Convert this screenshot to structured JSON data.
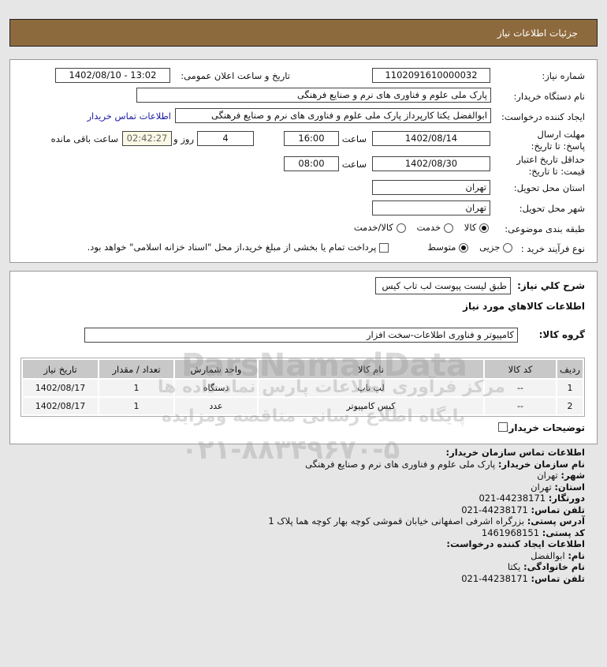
{
  "header": {
    "title": "جزئیات اطلاعات نیاز"
  },
  "form": {
    "need_number_label": "شماره نیاز:",
    "need_number": "1102091610000032",
    "announce_label": "تاریخ و ساعت اعلان عمومی:",
    "announce_value": "1402/08/10 - 13:02",
    "buyer_org_label": "نام دستگاه خریدار:",
    "buyer_org": "پارک ملی علوم و فناوری های نرم و صنایع فرهنگی",
    "creator_label": "ایجاد کننده درخواست:",
    "creator": "ابوالفضل  یکتا کارپرداز پارک ملی علوم و فناوری های نرم و صنایع فرهنگی",
    "contact_link": "اطلاعات تماس خریدار",
    "deadline_label": "مهلت ارسال پاسخ: تا تاریخ:",
    "deadline_date": "1402/08/14",
    "time_label": "ساعت",
    "deadline_time": "16:00",
    "days": "4",
    "days_label": "روز و",
    "remaining": "02:42:27",
    "remaining_label": "ساعت باقی مانده",
    "validity_label": "حداقل تاریخ اعتبار قیمت: تا تاریخ:",
    "validity_date": "1402/08/30",
    "validity_time": "08:00",
    "province_label": "استان محل تحویل:",
    "province": "تهران",
    "city_label": "شهر محل تحویل:",
    "city": "تهران",
    "category_label": "طبقه بندی موضوعی:",
    "category_options": [
      "کالا",
      "خدمت",
      "کالا/خدمت"
    ],
    "category_selected": "کالا",
    "process_label": "نوع فرآیند خرید :",
    "process_options": [
      "جزیی",
      "متوسط"
    ],
    "process_selected": "متوسط",
    "payment_note": "پرداخت تمام یا بخشی از مبلغ خرید،از محل \"اسناد خزانه اسلامی\" خواهد بود."
  },
  "details": {
    "desc_label": "شرح کلي نياز:",
    "desc": "طبق لیست پیوست لب تاب کیس",
    "goods_heading": "اطلاعات کالاهاي مورد نياز",
    "group_label": "گروه کالا:",
    "group": "کامپیوتر و فناوری اطلاعات-سخت افزار",
    "columns": [
      "ردیف",
      "کد کالا",
      "نام کالا",
      "واحد شمارش",
      "تعداد / مقدار",
      "تاریخ نیاز"
    ],
    "rows": [
      [
        "1",
        "--",
        "لپ تاپ",
        "دستگاه",
        "1",
        "1402/08/17"
      ],
      [
        "2",
        "--",
        "کیس کامپیوتر",
        "عدد",
        "1",
        "1402/08/17"
      ]
    ],
    "buyer_notes_label": "توضیحات خریدار:"
  },
  "contact": {
    "heading": "اطلاعات تماس سازمان خریدار:",
    "org_label": "نام سازمان خریدار:",
    "org": "پارک ملی علوم و فناوری های نرم و صنایع فرهنگی",
    "city_label": "شهر:",
    "city": "تهران",
    "province_label": "استان:",
    "province": "تهران",
    "fax_label": "دورنگار:",
    "fax": "44238171-021",
    "phone_label": "تلفن تماس:",
    "phone": "44238171-021",
    "address_label": "آدرس پستی:",
    "address": "بزرگراه اشرفی اصفهانی خیابان قموشی کوچه بهار کوچه هما پلاک 1",
    "postal_label": "کد پستی:",
    "postal": "1461968151",
    "creator_heading": "اطلاعات ایجاد کننده درخواست:",
    "name_label": "نام:",
    "name": "ابوالفضل",
    "family_label": "نام خانوادگی:",
    "family": "یکتا",
    "creator_phone_label": "تلفن تماس:",
    "creator_phone": "44238171-021"
  },
  "watermark": {
    "brand": "ParsNamadData",
    "line1": "مرکز فرآوری اطلاعات پارس نماد داده ها",
    "line2": "پایگاه اطلاع رسانی مناقصه ومزایده",
    "phone": "۰۲۱-۸۸۳۴۹۶۷۰-۵"
  }
}
